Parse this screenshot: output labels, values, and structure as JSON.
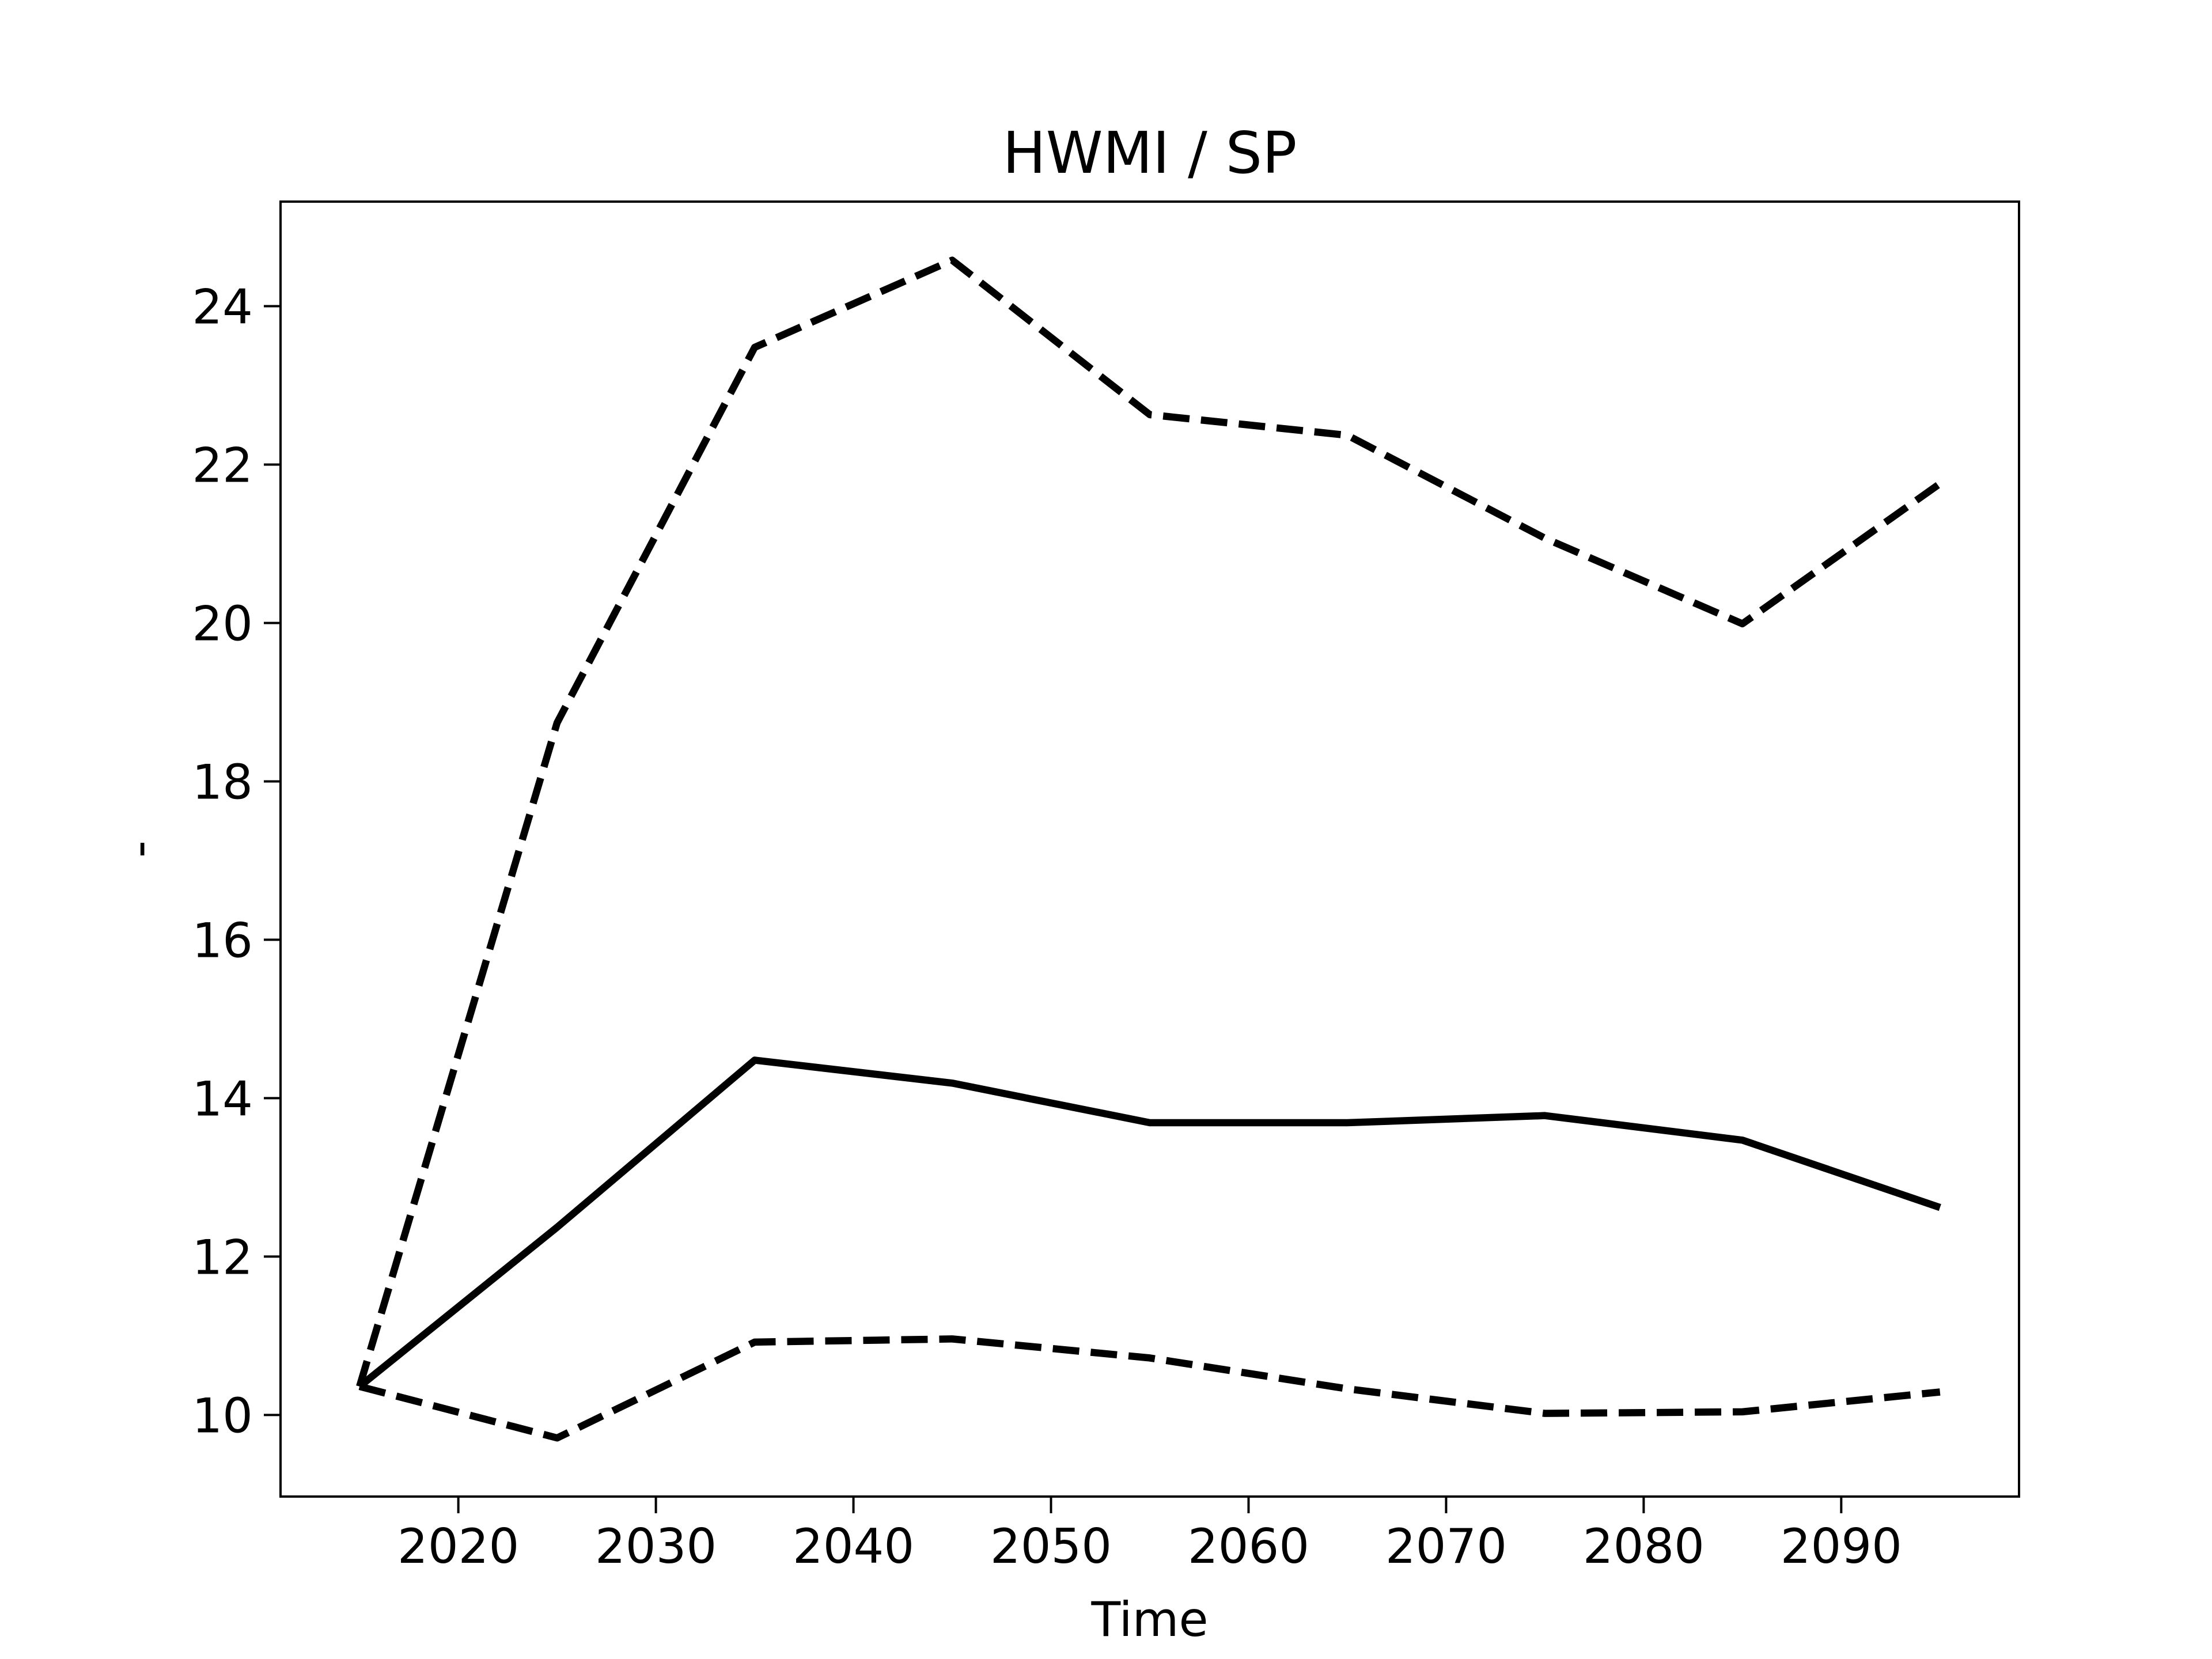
{
  "chart_data": {
    "type": "line",
    "title": "HWMI / SP",
    "x_label": "Time",
    "y_label": "-",
    "x": [
      2015,
      2025,
      2035,
      2045,
      2055,
      2065,
      2075,
      2085,
      2095
    ],
    "series": [
      {
        "color": "#000000",
        "linestyle": "solid",
        "values": [
          10.36,
          12.37,
          14.48,
          14.19,
          13.69,
          13.69,
          13.78,
          13.47,
          12.62
        ]
      },
      {
        "color": "#000000",
        "linestyle": "dashed",
        "values": [
          10.36,
          18.74,
          23.48,
          24.58,
          22.63,
          22.37,
          21.07,
          19.99,
          21.76
        ]
      },
      {
        "color": "#000000",
        "linestyle": "dashed",
        "values": [
          10.36,
          9.71,
          10.92,
          10.96,
          10.72,
          10.33,
          10.02,
          10.04,
          10.29
        ]
      }
    ],
    "xlim": [
      2011,
      2099
    ],
    "xticks": [
      2020,
      2030,
      2040,
      2050,
      2060,
      2070,
      2080,
      2090
    ],
    "ylim": [
      8.97,
      25.32
    ],
    "yticks": [
      10,
      12,
      14,
      16,
      18,
      20,
      22,
      24
    ],
    "grid": false
  }
}
